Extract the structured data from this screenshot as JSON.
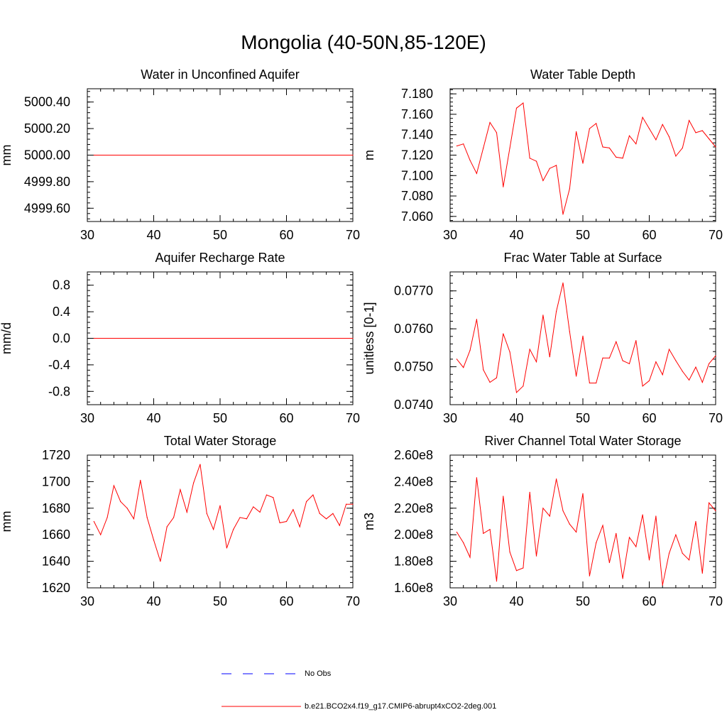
{
  "title": "Mongolia (40-50N,85-120E)",
  "colors": {
    "series": "#ff0000",
    "obs": "#0000ff",
    "axis": "#000000"
  },
  "legend": {
    "obs_label": "No Obs",
    "model_label": "b.e21.BCO2x4.f19_g17.CMIP6-abrupt4xCO2-2deg.001"
  },
  "chart_data": [
    {
      "type": "line",
      "title": "Water in Unconfined Aquifer",
      "ylabel": "mm",
      "xlim": [
        30,
        70
      ],
      "ylim": [
        4999.5,
        5000.5
      ],
      "yticks": [
        4999.6,
        4999.8,
        5000.0,
        5000.2,
        5000.4
      ],
      "ytick_labels": [
        "4999.60",
        "4999.80",
        "5000.00",
        "5000.20",
        "5000.40"
      ],
      "xticks": [
        30,
        40,
        50,
        60,
        70
      ],
      "xtick_labels": [
        "30",
        "40",
        "50",
        "60",
        "70"
      ],
      "x": [
        31,
        70
      ],
      "values": [
        5000.0,
        5000.0
      ]
    },
    {
      "type": "line",
      "title": "Water Table Depth",
      "ylabel": "m",
      "xlim": [
        30,
        70
      ],
      "ylim": [
        7.055,
        7.185
      ],
      "yticks": [
        7.06,
        7.08,
        7.1,
        7.12,
        7.14,
        7.16,
        7.18
      ],
      "ytick_labels": [
        "7.060",
        "7.080",
        "7.100",
        "7.120",
        "7.140",
        "7.160",
        "7.180"
      ],
      "xticks": [
        30,
        40,
        50,
        60,
        70
      ],
      "xtick_labels": [
        "30",
        "40",
        "50",
        "60",
        "70"
      ],
      "x": [
        31,
        32,
        33,
        34,
        35,
        36,
        37,
        38,
        39,
        40,
        41,
        42,
        43,
        44,
        45,
        46,
        47,
        48,
        49,
        50,
        51,
        52,
        53,
        54,
        55,
        56,
        57,
        58,
        59,
        60,
        61,
        62,
        63,
        64,
        65,
        66,
        67,
        68,
        69,
        70
      ],
      "values": [
        7.129,
        7.131,
        7.115,
        7.102,
        7.127,
        7.152,
        7.142,
        7.089,
        7.127,
        7.166,
        7.171,
        7.117,
        7.114,
        7.095,
        7.107,
        7.11,
        7.062,
        7.087,
        7.143,
        7.112,
        7.146,
        7.151,
        7.128,
        7.127,
        7.118,
        7.117,
        7.139,
        7.131,
        7.157,
        7.146,
        7.135,
        7.15,
        7.138,
        7.119,
        7.127,
        7.154,
        7.142,
        7.144,
        7.136,
        7.128
      ]
    },
    {
      "type": "line",
      "title": "Aquifer Recharge Rate",
      "ylabel": "mm/d",
      "xlim": [
        30,
        70
      ],
      "ylim": [
        -1.0,
        1.0
      ],
      "yticks": [
        -0.8,
        -0.4,
        0.0,
        0.4,
        0.8
      ],
      "ytick_labels": [
        "-0.8",
        "-0.4",
        "0.0",
        "0.4",
        "0.8"
      ],
      "xticks": [
        30,
        40,
        50,
        60,
        70
      ],
      "xtick_labels": [
        "30",
        "40",
        "50",
        "60",
        "70"
      ],
      "x": [
        31,
        70
      ],
      "values": [
        0.0,
        0.0
      ]
    },
    {
      "type": "line",
      "title": "Frac Water Table at Surface",
      "ylabel": "unitless [0-1]",
      "xlim": [
        30,
        70
      ],
      "ylim": [
        0.074,
        0.0775
      ],
      "yticks": [
        0.074,
        0.075,
        0.076,
        0.077
      ],
      "ytick_labels": [
        "0.0740",
        "0.0750",
        "0.0760",
        "0.0770"
      ],
      "xticks": [
        30,
        40,
        50,
        60,
        70
      ],
      "xtick_labels": [
        "30",
        "40",
        "50",
        "60",
        "70"
      ],
      "x": [
        31,
        32,
        33,
        34,
        35,
        36,
        37,
        38,
        39,
        40,
        41,
        42,
        43,
        44,
        45,
        46,
        47,
        48,
        49,
        50,
        51,
        52,
        53,
        54,
        55,
        56,
        57,
        58,
        59,
        60,
        61,
        62,
        63,
        64,
        65,
        66,
        67,
        68,
        69,
        70
      ],
      "values": [
        0.0752,
        0.07498,
        0.07543,
        0.07625,
        0.07492,
        0.07459,
        0.07471,
        0.07587,
        0.07539,
        0.07432,
        0.07449,
        0.07546,
        0.07513,
        0.07636,
        0.07526,
        0.07646,
        0.07721,
        0.07593,
        0.07475,
        0.07581,
        0.07457,
        0.07457,
        0.07523,
        0.07523,
        0.07566,
        0.07516,
        0.07508,
        0.07569,
        0.07449,
        0.07463,
        0.07513,
        0.07479,
        0.07546,
        0.07516,
        0.07488,
        0.07465,
        0.07499,
        0.07459,
        0.07508,
        0.07529
      ]
    },
    {
      "type": "line",
      "title": "Total Water Storage",
      "ylabel": "mm",
      "xlim": [
        30,
        70
      ],
      "ylim": [
        1620,
        1720
      ],
      "yticks": [
        1620,
        1640,
        1660,
        1680,
        1700,
        1720
      ],
      "ytick_labels": [
        "1620",
        "1640",
        "1660",
        "1680",
        "1700",
        "1720"
      ],
      "xticks": [
        30,
        40,
        50,
        60,
        70
      ],
      "xtick_labels": [
        "30",
        "40",
        "50",
        "60",
        "70"
      ],
      "x": [
        31,
        32,
        33,
        34,
        35,
        36,
        37,
        38,
        39,
        40,
        41,
        42,
        43,
        44,
        45,
        46,
        47,
        48,
        49,
        50,
        51,
        52,
        53,
        54,
        55,
        56,
        57,
        58,
        59,
        60,
        61,
        62,
        63,
        64,
        65,
        66,
        67,
        68,
        69,
        70
      ],
      "values": [
        1670,
        1660,
        1673,
        1697,
        1685,
        1680,
        1672,
        1701,
        1673,
        1656,
        1640,
        1666,
        1673,
        1694,
        1677,
        1699,
        1713,
        1676,
        1664,
        1682,
        1650,
        1664,
        1673,
        1672,
        1681,
        1677,
        1690,
        1688,
        1669,
        1670,
        1679,
        1666,
        1685,
        1690,
        1676,
        1672,
        1676,
        1667,
        1683,
        1683
      ]
    },
    {
      "type": "line",
      "title": "River Channel Total Water Storage",
      "ylabel": "m3",
      "xlim": [
        30,
        70
      ],
      "ylim": [
        160000000.0,
        260000000.0
      ],
      "yticks": [
        160000000.0,
        180000000.0,
        200000000.0,
        220000000.0,
        240000000.0,
        260000000.0
      ],
      "ytick_labels": [
        "1.60e8",
        "1.80e8",
        "2.00e8",
        "2.20e8",
        "2.40e8",
        "2.60e8"
      ],
      "xticks": [
        30,
        40,
        50,
        60,
        70
      ],
      "xtick_labels": [
        "30",
        "40",
        "50",
        "60",
        "70"
      ],
      "x": [
        31,
        32,
        33,
        34,
        35,
        36,
        37,
        38,
        39,
        40,
        41,
        42,
        43,
        44,
        45,
        46,
        47,
        48,
        49,
        50,
        51,
        52,
        53,
        54,
        55,
        56,
        57,
        58,
        59,
        60,
        61,
        62,
        63,
        64,
        65,
        66,
        67,
        68,
        69,
        70
      ],
      "values": [
        202000000.0,
        194000000.0,
        183000000.0,
        243000000.0,
        201000000.0,
        204000000.0,
        165000000.0,
        229000000.0,
        187000000.0,
        173000000.0,
        175000000.0,
        232000000.0,
        184000000.0,
        220000000.0,
        214000000.0,
        242000000.0,
        218000000.0,
        208000000.0,
        202000000.0,
        231000000.0,
        169000000.0,
        194000000.0,
        207000000.0,
        179000000.0,
        201000000.0,
        167000000.0,
        198000000.0,
        191000000.0,
        215000000.0,
        181000000.0,
        214000000.0,
        162000000.0,
        186000000.0,
        200000000.0,
        186000000.0,
        181000000.0,
        210000000.0,
        171000000.0,
        224000000.0,
        218000000.0
      ]
    }
  ]
}
